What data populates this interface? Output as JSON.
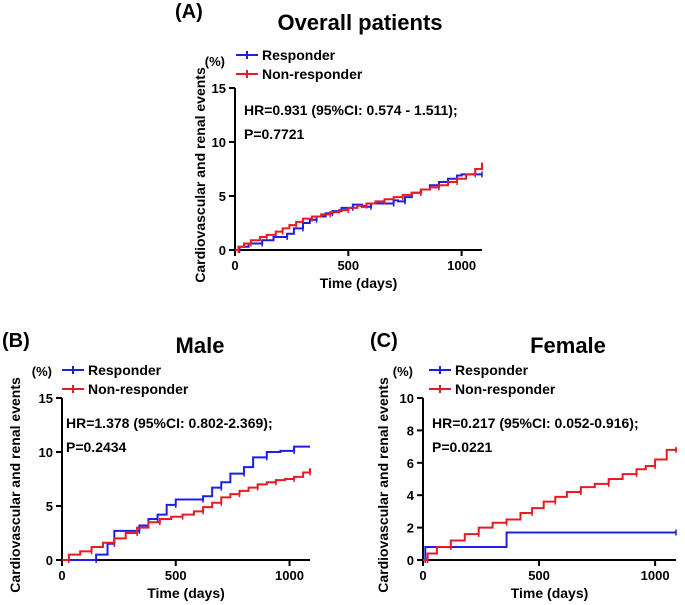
{
  "chart_data": [
    {
      "type": "line",
      "panel_label": "(A)",
      "title": "Overall patients",
      "xlabel": "Time (days)",
      "ylabel": "Cardiovascular and renal events",
      "y_unit": "(%)",
      "xlim": [
        0,
        1090
      ],
      "ylim": [
        0,
        15
      ],
      "x_ticks": [
        0,
        500,
        1000
      ],
      "y_ticks": [
        0,
        5,
        10,
        15
      ],
      "legend": [
        "Responder",
        "Non-responder"
      ],
      "annotation": [
        "HR=0.931 (95%CI: 0.574 - 1.511);",
        "P=0.7721"
      ],
      "series": [
        {
          "name": "Responder",
          "color": "#1f1fe0",
          "x": [
            0,
            20,
            60,
            120,
            170,
            230,
            260,
            300,
            330,
            360,
            400,
            430,
            470,
            520,
            560,
            600,
            640,
            700,
            720,
            750,
            780,
            820,
            860,
            900,
            940,
            980,
            1000,
            1090
          ],
          "y": [
            0,
            0.3,
            0.6,
            0.9,
            1.2,
            1.5,
            2.0,
            2.5,
            2.8,
            3.1,
            3.4,
            3.6,
            3.9,
            4.2,
            4.0,
            4.3,
            4.3,
            4.6,
            4.5,
            4.9,
            5.3,
            5.6,
            6.0,
            6.3,
            6.6,
            6.9,
            7.0,
            7.0
          ]
        },
        {
          "name": "Non-responder",
          "color": "#e81b23",
          "x": [
            0,
            15,
            40,
            70,
            110,
            140,
            180,
            210,
            240,
            270,
            300,
            340,
            380,
            420,
            460,
            500,
            540,
            580,
            620,
            660,
            700,
            740,
            780,
            820,
            860,
            900,
            940,
            980,
            1020,
            1060,
            1090
          ],
          "y": [
            0,
            0.3,
            0.6,
            0.9,
            1.2,
            1.4,
            1.7,
            2.0,
            2.3,
            2.6,
            2.9,
            3.1,
            3.3,
            3.5,
            3.7,
            3.9,
            4.1,
            4.3,
            4.5,
            4.7,
            4.9,
            5.1,
            5.3,
            5.6,
            5.8,
            6.0,
            6.3,
            6.6,
            7.0,
            7.5,
            8.1
          ]
        }
      ]
    },
    {
      "type": "line",
      "panel_label": "(B)",
      "title": "Male",
      "xlabel": "Time (days)",
      "ylabel": "Cardiovascular and renal events",
      "y_unit": "(%)",
      "xlim": [
        0,
        1090
      ],
      "ylim": [
        0,
        15
      ],
      "x_ticks": [
        0,
        500,
        1000
      ],
      "y_ticks": [
        0,
        5,
        10,
        15
      ],
      "legend": [
        "Responder",
        "Non-responder"
      ],
      "annotation": [
        "HR=1.378 (95%CI: 0.802-2.369);",
        "P=0.2434"
      ],
      "series": [
        {
          "name": "Responder",
          "color": "#1f1fe0",
          "x": [
            0,
            150,
            200,
            230,
            290,
            340,
            380,
            420,
            460,
            500,
            560,
            620,
            660,
            700,
            740,
            800,
            840,
            900,
            960,
            1020,
            1090
          ],
          "y": [
            0,
            0.5,
            1.5,
            2.7,
            2.7,
            3.2,
            3.8,
            4.2,
            5.1,
            5.6,
            5.6,
            5.9,
            6.7,
            7.2,
            8.0,
            8.6,
            9.5,
            10.0,
            10.1,
            10.5,
            10.5
          ]
        },
        {
          "name": "Non-responder",
          "color": "#e81b23",
          "x": [
            0,
            30,
            80,
            130,
            180,
            230,
            280,
            330,
            380,
            430,
            480,
            530,
            580,
            620,
            660,
            700,
            740,
            780,
            820,
            860,
            900,
            940,
            980,
            1020,
            1060,
            1090
          ],
          "y": [
            0,
            0.5,
            0.8,
            1.2,
            1.6,
            2.0,
            2.5,
            3.0,
            3.5,
            3.8,
            4.0,
            4.2,
            4.5,
            4.9,
            5.3,
            5.8,
            6.1,
            6.4,
            6.7,
            7.0,
            7.2,
            7.4,
            7.5,
            7.7,
            8.1,
            8.5
          ]
        }
      ]
    },
    {
      "type": "line",
      "panel_label": "(C)",
      "title": "Female",
      "xlabel": "Time (days)",
      "ylabel": "Cardiovascular and renal events",
      "y_unit": "(%)",
      "xlim": [
        0,
        1090
      ],
      "ylim": [
        0,
        10
      ],
      "x_ticks": [
        0,
        500,
        1000
      ],
      "y_ticks": [
        0,
        2,
        4,
        6,
        8,
        10
      ],
      "legend": [
        "Responder",
        "Non-responder"
      ],
      "annotation": [
        "HR=0.217 (95%CI: 0.052-0.916);",
        "P=0.0221"
      ],
      "series": [
        {
          "name": "Responder",
          "color": "#1f1fe0",
          "x": [
            0,
            10,
            360,
            1090
          ],
          "y": [
            0,
            0.8,
            1.7,
            1.7
          ]
        },
        {
          "name": "Non-responder",
          "color": "#e81b23",
          "x": [
            0,
            20,
            60,
            120,
            180,
            240,
            300,
            360,
            420,
            470,
            520,
            570,
            620,
            680,
            740,
            800,
            860,
            920,
            960,
            1000,
            1050,
            1090
          ],
          "y": [
            0,
            0.4,
            0.8,
            1.2,
            1.6,
            2.0,
            2.3,
            2.5,
            2.9,
            3.2,
            3.6,
            3.9,
            4.2,
            4.5,
            4.7,
            5.0,
            5.3,
            5.6,
            5.8,
            6.2,
            6.8,
            6.9
          ]
        }
      ]
    }
  ]
}
